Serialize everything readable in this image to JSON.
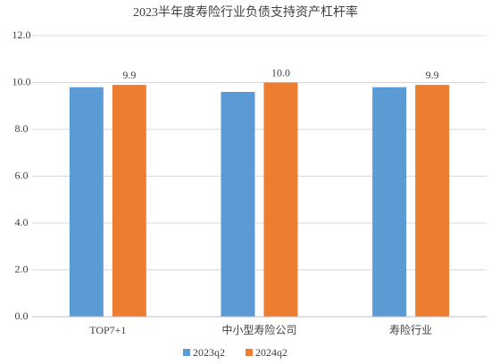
{
  "chart_data": {
    "type": "bar",
    "title": "2023半年度寿险行业负债支持资产杠杆率",
    "categories": [
      "TOP7+1",
      "中小型寿险公司",
      "寿险行业"
    ],
    "series": [
      {
        "name": "2023q2",
        "color": "#5b9bd5",
        "values": [
          9.8,
          9.6,
          9.8
        ]
      },
      {
        "name": "2024q2",
        "color": "#ed7d31",
        "values": [
          9.9,
          10.0,
          9.9
        ],
        "value_labels": [
          "9.9",
          "10.0",
          "9.9"
        ]
      }
    ],
    "ylim": [
      0,
      12
    ],
    "yticks": [
      {
        "value": 0,
        "label": "0.0"
      },
      {
        "value": 2,
        "label": "2.0"
      },
      {
        "value": 4,
        "label": "4.0"
      },
      {
        "value": 6,
        "label": "6.0"
      },
      {
        "value": 8,
        "label": "8.0"
      },
      {
        "value": 10,
        "label": "10.0"
      },
      {
        "value": 12,
        "label": "12.0"
      }
    ],
    "grid": true,
    "legend": "bottom"
  }
}
